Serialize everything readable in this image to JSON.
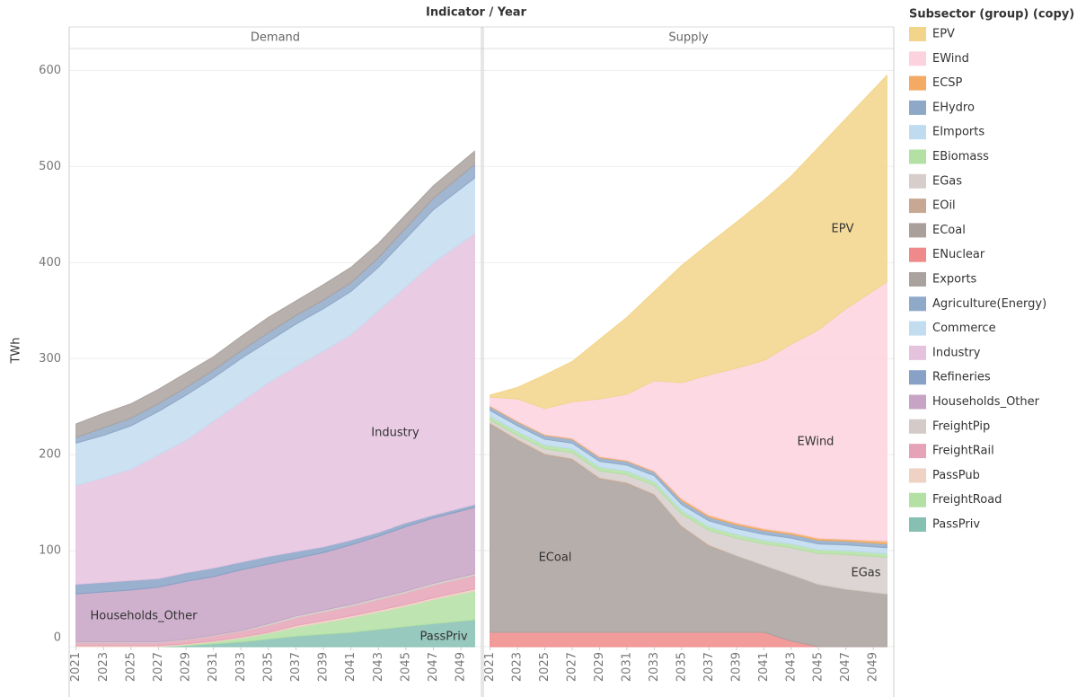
{
  "header": "Indicator / Year",
  "legend_title": "Subsector (group) (copy)",
  "chart_data": [
    {
      "type": "area",
      "stacked": true,
      "title": "Demand",
      "ylabel": "TWh",
      "x": [
        2021,
        2023,
        2025,
        2027,
        2029,
        2031,
        2033,
        2035,
        2037,
        2039,
        2041,
        2043,
        2045,
        2047,
        2050
      ],
      "xlim": [
        2020.5,
        2050.5
      ],
      "xticks": [
        2021,
        2023,
        2025,
        2027,
        2029,
        2031,
        2033,
        2035,
        2037,
        2039,
        2041,
        2043,
        2045,
        2047,
        2049
      ],
      "ylim": [
        0,
        622
      ],
      "yticks": [
        0,
        100,
        200,
        300,
        400,
        500,
        600
      ],
      "grid": true,
      "annotations": [
        "Industry",
        "Households_Other",
        "PassPriv"
      ],
      "series": [
        {
          "name": "PassPriv",
          "color": "#86c0b3",
          "values": [
            0,
            0,
            0,
            0,
            1,
            3,
            5,
            8,
            11,
            13,
            15,
            18,
            21,
            24,
            28
          ]
        },
        {
          "name": "FreightRoad",
          "color": "#b3e0a3",
          "values": [
            0,
            0,
            0,
            0,
            1,
            2,
            4,
            6,
            9,
            12,
            15,
            18,
            21,
            25,
            30
          ]
        },
        {
          "name": "PassPub",
          "color": "#efd2c4",
          "values": [
            1,
            1,
            1,
            1,
            1,
            1,
            1,
            1,
            2,
            2,
            2,
            2,
            2,
            2,
            2
          ]
        },
        {
          "name": "FreightRail",
          "color": "#e6a3b7",
          "values": [
            3,
            3,
            3,
            3,
            4,
            5,
            6,
            7,
            8,
            9,
            10,
            11,
            12,
            13,
            14
          ]
        },
        {
          "name": "FreightPip",
          "color": "#d4cbc8",
          "values": [
            1,
            1,
            1,
            1,
            1,
            1,
            1,
            2,
            2,
            2,
            2,
            2,
            2,
            2,
            2
          ]
        },
        {
          "name": "Households_Other",
          "color": "#c7a3c6",
          "values": [
            50,
            52,
            54,
            57,
            60,
            61,
            63,
            62,
            60,
            60,
            62,
            64,
            67,
            68,
            69
          ]
        },
        {
          "name": "Refineries",
          "color": "#87a2c6",
          "values": [
            10,
            10,
            10,
            9,
            9,
            9,
            8,
            8,
            7,
            6,
            5,
            4,
            4,
            3,
            3
          ]
        },
        {
          "name": "Industry",
          "color": "#e5c3df",
          "values": [
            103,
            109,
            116,
            129,
            138,
            153,
            167,
            181,
            193,
            204,
            214,
            231,
            246,
            263,
            282
          ]
        },
        {
          "name": "Commerce",
          "color": "#c3ddf0",
          "values": [
            44,
            44,
            45,
            45,
            47,
            45,
            45,
            43,
            44,
            44,
            45,
            45,
            50,
            55,
            58
          ]
        },
        {
          "name": "Agriculture(Energy)",
          "color": "#8fa9c9",
          "values": [
            6,
            8,
            8,
            8,
            8,
            8,
            8,
            9,
            9,
            9,
            9,
            10,
            11,
            12,
            14
          ]
        },
        {
          "name": "Exports",
          "color": "#aaa29f",
          "values": [
            14,
            15,
            15,
            15,
            15,
            14,
            15,
            16,
            15,
            16,
            16,
            15,
            14,
            13,
            14
          ]
        }
      ]
    },
    {
      "type": "area",
      "stacked": true,
      "title": "Supply",
      "x": [
        2021,
        2023,
        2025,
        2027,
        2029,
        2031,
        2033,
        2035,
        2037,
        2039,
        2041,
        2043,
        2045,
        2047,
        2050
      ],
      "xlim": [
        2020.5,
        2050.5
      ],
      "xticks": [
        2021,
        2023,
        2025,
        2027,
        2029,
        2031,
        2033,
        2035,
        2037,
        2039,
        2041,
        2043,
        2045,
        2047,
        2049
      ],
      "ylim": [
        0,
        622
      ],
      "yticks": [
        0,
        100,
        200,
        300,
        400,
        500,
        600
      ],
      "grid": true,
      "annotations": [
        "ECoal",
        "EPV",
        "EWind",
        "EGas"
      ],
      "series": [
        {
          "name": "ENuclear",
          "color": "#f08a8a",
          "values": [
            15,
            15,
            15,
            15,
            15,
            15,
            15,
            15,
            15,
            15,
            15,
            6,
            0,
            0,
            0
          ]
        },
        {
          "name": "ECoal",
          "color": "#a9a09c",
          "values": [
            217,
            200,
            185,
            180,
            160,
            155,
            143,
            110,
            90,
            80,
            70,
            69,
            65,
            60,
            55
          ]
        },
        {
          "name": "EOil",
          "color": "#c9a893",
          "values": [
            1,
            1,
            1,
            1,
            1,
            1,
            1,
            1,
            1,
            0,
            0,
            0,
            0,
            0,
            0
          ]
        },
        {
          "name": "EGas",
          "color": "#d7cecb",
          "values": [
            3,
            4,
            5,
            6,
            7,
            8,
            9,
            12,
            15,
            18,
            22,
            28,
            32,
            36,
            38
          ]
        },
        {
          "name": "EBiomass",
          "color": "#b3e0a3",
          "values": [
            4,
            4,
            4,
            4,
            4,
            4,
            4,
            4,
            4,
            4,
            4,
            4,
            4,
            4,
            4
          ]
        },
        {
          "name": "EImports",
          "color": "#bedbf0",
          "values": [
            6,
            6,
            6,
            6,
            6,
            6,
            6,
            6,
            6,
            6,
            6,
            6,
            6,
            6,
            6
          ]
        },
        {
          "name": "EHydro",
          "color": "#8ea8c8",
          "values": [
            4,
            4,
            4,
            4,
            4,
            4,
            4,
            4,
            4,
            4,
            4,
            4,
            4,
            4,
            4
          ]
        },
        {
          "name": "ECSP",
          "color": "#f4aa62",
          "values": [
            1,
            1,
            1,
            1,
            1,
            1,
            1,
            2,
            2,
            2,
            2,
            2,
            2,
            2,
            3
          ]
        },
        {
          "name": "EWind",
          "color": "#fbd2de",
          "values": [
            9,
            23,
            27,
            38,
            60,
            69,
            94,
            121,
            146,
            161,
            175,
            196,
            217,
            240,
            270
          ]
        },
        {
          "name": "EPV",
          "color": "#f2d58a",
          "values": [
            2,
            12,
            35,
            42,
            62,
            80,
            93,
            122,
            137,
            152,
            167,
            175,
            190,
            198,
            215
          ]
        }
      ]
    }
  ]
}
